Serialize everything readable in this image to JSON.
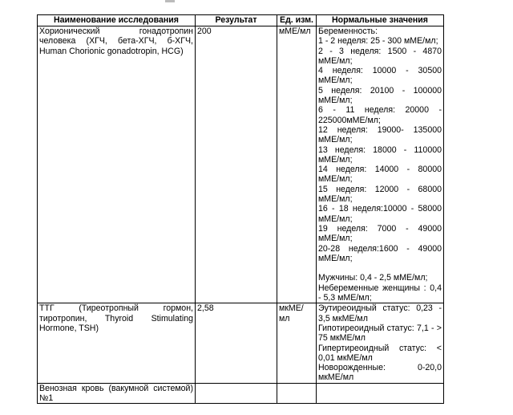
{
  "headers": [
    "Наименование исследования",
    "Результат",
    "Ед. изм.",
    "Нормальные значения"
  ],
  "rows": [
    {
      "name": [
        [
          "Хорионический гонадотропин",
          "человека (ХГЧ, бета-ХГЧ, б-ХГЧ,",
          "Human Chorionic gonadotropin, HCG)"
        ]
      ],
      "result": "200",
      "unit": "мМЕ/мл",
      "norms": [
        [
          "Беременность:"
        ],
        [
          "1 - 2 неделя: 25 - 300 мМЕ/мл;"
        ],
        [
          "2 - 3 неделя: 1500 - 4870",
          "мМЕ/мл;"
        ],
        [
          "4 неделя: 10000 - 30500",
          "мМЕ/мл;"
        ],
        [
          "5 неделя: 20100 - 100000",
          "мМЕ/мл;"
        ],
        [
          "6 - 11 неделя: 20000 -",
          "225000мМЕ/мл;"
        ],
        [
          "12 неделя: 19000- 135000",
          "мМЕ/мл;"
        ],
        [
          "13 неделя: 18000 - 110000",
          "мМЕ/мл;"
        ],
        [
          "14 неделя: 14000 - 80000",
          "мМЕ/мл;"
        ],
        [
          "15 неделя: 12000 - 68000",
          "мМЕ/мл;"
        ],
        [
          "16 - 18 неделя:10000 - 58000",
          "мМЕ/мл;"
        ],
        [
          "19 неделя: 7000 - 49000",
          "мМЕ/мл;"
        ],
        [
          "20-28 неделя:1600 - 49000",
          "мМЕ/мл;"
        ],
        [
          ""
        ],
        [
          "Мужчины: 0,4 - 2,5 мМЕ/мл;"
        ],
        [
          "Небеременные женщины : 0,4",
          "- 5,3 мМЕ/мл;"
        ]
      ]
    },
    {
      "name": [
        [
          "ТТГ (Тиреотропный гормон,",
          "тиротропин, Thyroid Stimulating",
          "Hormone, TSH)"
        ]
      ],
      "result": "2,58",
      "unit": "мкМЕ/мл",
      "norms": [
        [
          "Эутиреоидный статус: 0,23 -",
          "3,5 мкМЕ/мл"
        ],
        [
          "Гипотиреоидный статус: 7,1 - >",
          "75 мкМЕ/мл"
        ],
        [
          "Гипертиреоидный статус: <",
          "0,01 мкМЕ/мл"
        ],
        [
          "Новорожденные: 0-20,0",
          "мкМЕ/мл"
        ]
      ]
    },
    {
      "name": [
        [
          "Венозная кровь (вакумной системой)",
          "№1"
        ]
      ],
      "result": "",
      "unit": "",
      "norms": []
    }
  ]
}
